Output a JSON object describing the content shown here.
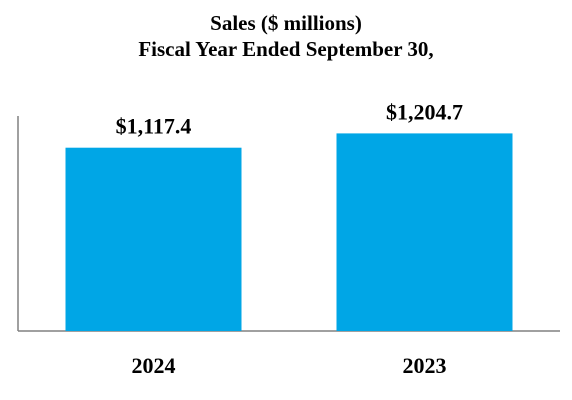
{
  "chart_data": {
    "type": "bar",
    "title": "Sales ($ millions)",
    "subtitle": "Fiscal Year Ended September 30,",
    "categories": [
      "2024",
      "2023"
    ],
    "values": [
      1117.4,
      1204.7
    ],
    "data_labels": [
      "$1,117.4",
      "$1,204.7"
    ],
    "bar_color": "#00a6e6",
    "ylim": [
      0,
      1300
    ],
    "grid": false,
    "legend": "none"
  }
}
